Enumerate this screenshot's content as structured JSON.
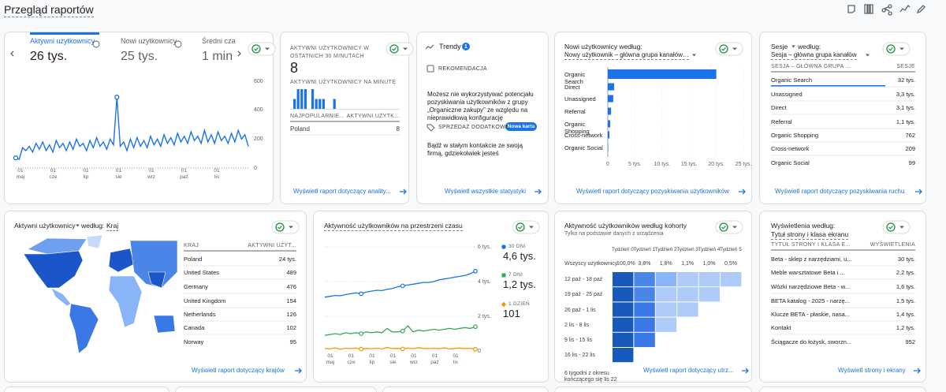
{
  "header": {
    "title": "Przegląd raportów"
  },
  "overview": {
    "tabs": [
      {
        "label": "Aktywni użytkownicy",
        "value": "26 tys."
      },
      {
        "label": "Nowi użytkownicy",
        "value": "25 tys."
      },
      {
        "label": "Średni cza",
        "value": "1 min"
      }
    ],
    "chart": {
      "type": "line",
      "color": "#1a73e8",
      "ylim": [
        0,
        600
      ],
      "yticks": [
        0,
        200,
        400,
        600
      ],
      "x_labels": [
        {
          "day": "01",
          "month": "maj"
        },
        {
          "day": "01",
          "month": "cze"
        },
        {
          "day": "01",
          "month": "lip"
        },
        {
          "day": "01",
          "month": "sie"
        },
        {
          "day": "01",
          "month": "wrz"
        },
        {
          "day": "01",
          "month": "paź"
        },
        {
          "day": "01",
          "month": "lis"
        }
      ],
      "values": [
        70,
        60,
        140,
        120,
        150,
        110,
        170,
        130,
        180,
        120,
        160,
        110,
        190,
        140,
        170,
        120,
        180,
        130,
        200,
        150,
        170,
        120,
        190,
        140,
        210,
        150,
        180,
        130,
        200,
        160,
        490,
        150,
        180,
        120,
        200,
        140,
        210,
        150,
        190,
        140,
        220,
        160,
        200,
        150,
        230,
        170,
        210,
        160,
        240,
        180,
        220,
        170,
        250,
        190,
        220,
        170,
        260,
        180,
        230,
        170,
        250,
        190,
        220,
        170,
        240,
        180,
        260,
        200,
        230,
        150
      ]
    }
  },
  "realtime": {
    "title": "AKTYWNI UŻYTKOWNICY W OSTATNICH 30 MINUTACH",
    "value": "8",
    "per_minute_title": "AKTYWNI UŻYTKOWNICY NA MINUTĘ",
    "per_minute": [
      1,
      2,
      2,
      2,
      0,
      2,
      1,
      1,
      1,
      0,
      0,
      1,
      0,
      0,
      0,
      0,
      0,
      0,
      0,
      0,
      0,
      0,
      0,
      0,
      0,
      0,
      0,
      0,
      0,
      0
    ],
    "columns": [
      "NAJPOPULARNIE...",
      "AKTYWNI UŻYTK..."
    ],
    "rows": [
      [
        "Poland",
        "8"
      ]
    ],
    "link": "Wyświetl raport dotyczący anality..."
  },
  "insights": {
    "title": "Trendy",
    "badge": "1",
    "recommendation_label": "REKOMENDACJA",
    "recommendation_text": "Możesz nie wykorzystywać potencjału pozyskiwania użytkowników z grupy „Organiczne zakupy” ze względu na nieprawidłową konfigurację",
    "upsell_label": "SPRZEDAŻ DODATKOWA",
    "upsell_badge": "Nowa karta",
    "upsell_text": "Bądź w stałym kontakcie ze swoją firmą, gdziekolwiek jesteś",
    "link": "Wyświetl wszystkie statystyki"
  },
  "new_users": {
    "title": "Nowi użytkownicy według:",
    "dimension": "Nowy użytkownik – główna grupa kanałów…",
    "chart": {
      "type": "bar",
      "color": "#1a73e8",
      "categories": [
        "Organic Search",
        "Direct",
        "Unassigned",
        "Referral",
        "Organic Shopping",
        "Cross-network",
        "Organic Social"
      ],
      "values": [
        20000,
        1160,
        1000,
        600,
        450,
        300,
        80
      ],
      "xlim": [
        0,
        25000
      ],
      "xticks": [
        0,
        {
          "value": 5000,
          "label": "5 tys."
        },
        {
          "value": 10000,
          "label": "10 tys."
        },
        {
          "value": 15000,
          "label": "15 tys."
        },
        {
          "value": 20000,
          "label": "20 tys."
        },
        {
          "value": 25000,
          "label": "25 tys."
        }
      ]
    },
    "link": "Wyświetl raport dotyczący pozyskiwania użytkowników"
  },
  "sessions": {
    "metric": "Sesje",
    "by": "według:",
    "dimension": "Sesja – główna grupa kanałów",
    "columns": [
      "SESJA – GŁÓWNA GRUPA ...",
      "SESJE"
    ],
    "rows": [
      [
        "Organic Search",
        "32 tys."
      ],
      [
        "Unassigned",
        "3,3 tys."
      ],
      [
        "Direct",
        "3,1 tys."
      ],
      [
        "Referral",
        "1,1 tys."
      ],
      [
        "Organic Shopping",
        "762"
      ],
      [
        "Cross-network",
        "209"
      ],
      [
        "Organic Social",
        "99"
      ]
    ],
    "link": "Wyświetl raport dotyczący pozyskiwania ruchu"
  },
  "countries": {
    "metric": "Aktywni użytkownicy",
    "by": "według:",
    "dimension": "Kraj",
    "columns": [
      "KRAJ",
      "AKTYWNI UŻYT..."
    ],
    "rows": [
      [
        "Poland",
        "24 tys."
      ],
      [
        "United States",
        "489"
      ],
      [
        "Germany",
        "476"
      ],
      [
        "United Kingdom",
        "154"
      ],
      [
        "Netherlands",
        "126"
      ],
      [
        "Canada",
        "102"
      ],
      [
        "Norway",
        "95"
      ]
    ],
    "link": "Wyświetl raport dotyczący krajów"
  },
  "activity": {
    "title": "Aktywność użytkowników na przestrzeni czasu",
    "chart": {
      "type": "line",
      "ylim": [
        0,
        6000
      ],
      "yticks": [
        0,
        {
          "value": 2000,
          "label": "2 tys."
        },
        {
          "value": 4000,
          "label": "4 tys."
        },
        {
          "value": 6000,
          "label": "6 tys."
        }
      ],
      "x_labels": [
        {
          "day": "01",
          "month": "maj"
        },
        {
          "day": "01",
          "month": "cze"
        },
        {
          "day": "01",
          "month": "lip"
        },
        {
          "day": "01",
          "month": "sie"
        },
        {
          "day": "01",
          "month": "wrz"
        },
        {
          "day": "01",
          "month": "paź"
        },
        {
          "day": "01",
          "month": "lis"
        }
      ],
      "series": [
        {
          "name": "30 DNI",
          "total": "4,6 tys.",
          "color": "#1a73e8",
          "values": [
            3100,
            3150,
            3200,
            3180,
            3250,
            3300,
            3350,
            3300,
            3400,
            3450,
            3500,
            3480,
            3550,
            3600,
            3700,
            3750,
            3800,
            3850,
            3900,
            3950,
            3950,
            4000,
            4100,
            4150,
            4200,
            4250,
            4300,
            4350,
            4450,
            4600
          ]
        },
        {
          "name": "7 DNI",
          "total": "1,2 tys.",
          "color": "#34a853",
          "values": [
            900,
            950,
            1000,
            950,
            1050,
            1000,
            1050,
            1000,
            1100,
            1050,
            1100,
            1050,
            1300,
            1100,
            1100,
            1150,
            1450,
            1100,
            1200,
            1150,
            1200,
            1250,
            1200,
            1250,
            1300,
            1250,
            1300,
            1350,
            1300,
            1400
          ]
        },
        {
          "name": "1 DZIEŃ",
          "total": "101",
          "color": "#f29900",
          "values": [
            150,
            120,
            180,
            100,
            160,
            140,
            170,
            110,
            150,
            130,
            160,
            120,
            200,
            140,
            150,
            120,
            170,
            130,
            190,
            150,
            140,
            160,
            130,
            180,
            120,
            150,
            170,
            140,
            160,
            101
          ]
        }
      ]
    }
  },
  "cohort": {
    "title": "Aktywność użytkowników według kohorty",
    "subtitle": "Tylko na podstawie danych z urządzenia",
    "columns": [
      "Tydzień 0",
      "Tydzień 1",
      "Tydzień 2",
      "Tydzień 3",
      "Tydzień 4",
      "Tydzień 5"
    ],
    "all_users_label": "Wszyscy użytkownicy",
    "all_users": [
      "100,0%",
      "3,8%",
      "1,8%",
      "1,1%",
      "1,0%",
      "0,5%"
    ],
    "rows": [
      "12 paź - 18 paź",
      "19 paź - 25 paź",
      "26 paź - 1 lis",
      "2 lis - 8 lis",
      "9 lis - 15 lis",
      "16 lis - 22 lis"
    ],
    "footer": "6 tygodni z okresu kończącego się lis 22",
    "link": "Wyświetl raport dotyczący utrz..."
  },
  "pages": {
    "title": "Wyświetlenia według:",
    "dimension": "Tytuł strony i klasa ekranu",
    "columns": [
      "TYTUŁ STRONY I KLASA E...",
      "WYŚWIETLENIA"
    ],
    "rows": [
      [
        "Beta - sklep z narzędziami, u...",
        "30 tys."
      ],
      [
        "Meble warsztatowe Beta i ...",
        "2,2 tys."
      ],
      [
        "Wózki narzędziowe Beta - w...",
        "1,6 tys."
      ],
      [
        "BETA katalog - 2025 - narzę...",
        "1,5 tys."
      ],
      [
        "Klucze BETA - płaskie, nasa...",
        "1,4 tys."
      ],
      [
        "Kontakt",
        "1,2 tys."
      ],
      [
        "Ściągacze do łożysk, sworzn...",
        "952"
      ]
    ],
    "link": "Wyświetl strony i ekrany"
  }
}
